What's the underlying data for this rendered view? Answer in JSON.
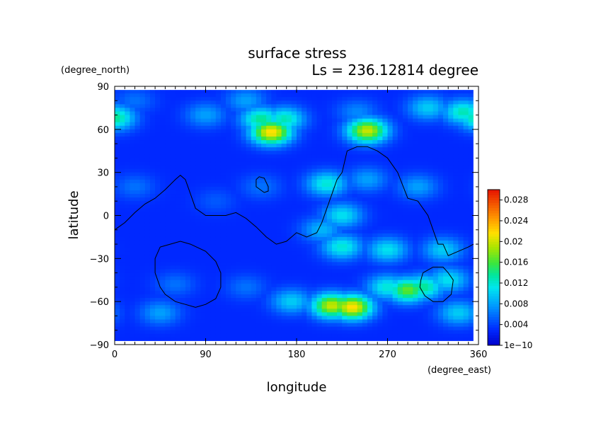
{
  "chart_data": {
    "type": "heatmap",
    "title": "surface stress",
    "subtitle": "Ls = 236.12814 degree",
    "xlabel": "longitude",
    "ylabel": "latitude",
    "x_unit": "(degree_east)",
    "y_unit": "(degree_north)",
    "xlim": [
      0,
      360
    ],
    "ylim": [
      -90,
      90
    ],
    "data_lat_range": [
      -87.5,
      87.5
    ],
    "x_ticks": [
      "0",
      "90",
      "180",
      "270",
      "360"
    ],
    "y_ticks": [
      "90",
      "60",
      "30",
      "0",
      "−30",
      "−60",
      "−90"
    ],
    "colorbar": {
      "min": 0,
      "max": 0.03,
      "tick_labels": [
        "1e−10",
        "0.004",
        "0.008",
        "0.012",
        "0.016",
        "0.02",
        "0.024",
        "0.028"
      ],
      "tick_values": [
        0,
        0.004,
        0.008,
        0.012,
        0.016,
        0.02,
        0.024,
        0.028
      ]
    },
    "background_value": 0.003,
    "features": [
      {
        "lon": 20,
        "lat": 80,
        "value": 0.006
      },
      {
        "lon": 130,
        "lat": 80,
        "value": 0.008
      },
      {
        "lon": 90,
        "lat": 70,
        "value": 0.008
      },
      {
        "lon": 0,
        "lat": 68,
        "value": 0.014
      },
      {
        "lon": 145,
        "lat": 67,
        "value": 0.014
      },
      {
        "lon": 168,
        "lat": 67,
        "value": 0.013
      },
      {
        "lon": 155,
        "lat": 58,
        "value": 0.022
      },
      {
        "lon": 250,
        "lat": 59,
        "value": 0.02
      },
      {
        "lon": 240,
        "lat": 72,
        "value": 0.007
      },
      {
        "lon": 310,
        "lat": 75,
        "value": 0.01
      },
      {
        "lon": 345,
        "lat": 72,
        "value": 0.013
      },
      {
        "lon": 210,
        "lat": 22,
        "value": 0.012
      },
      {
        "lon": 225,
        "lat": 0,
        "value": 0.011
      },
      {
        "lon": 205,
        "lat": -10,
        "value": 0.009
      },
      {
        "lon": 250,
        "lat": 25,
        "value": 0.008
      },
      {
        "lon": 300,
        "lat": 20,
        "value": 0.008
      },
      {
        "lon": 225,
        "lat": -22,
        "value": 0.012
      },
      {
        "lon": 270,
        "lat": -24,
        "value": 0.011
      },
      {
        "lon": 325,
        "lat": -24,
        "value": 0.01
      },
      {
        "lon": 60,
        "lat": -48,
        "value": 0.006
      },
      {
        "lon": 130,
        "lat": -50,
        "value": 0.006
      },
      {
        "lon": 175,
        "lat": -60,
        "value": 0.01
      },
      {
        "lon": 215,
        "lat": -63,
        "value": 0.02
      },
      {
        "lon": 235,
        "lat": -64,
        "value": 0.022
      },
      {
        "lon": 270,
        "lat": -50,
        "value": 0.012
      },
      {
        "lon": 290,
        "lat": -52,
        "value": 0.017
      },
      {
        "lon": 305,
        "lat": -50,
        "value": 0.014
      },
      {
        "lon": 330,
        "lat": -45,
        "value": 0.011
      },
      {
        "lon": 340,
        "lat": -68,
        "value": 0.01
      },
      {
        "lon": 45,
        "lat": -68,
        "value": 0.008
      },
      {
        "lon": 145,
        "lat": 20,
        "value": 0.006
      },
      {
        "lon": 20,
        "lat": 20,
        "value": 0.006
      },
      {
        "lon": 100,
        "lat": 10,
        "value": 0.005
      }
    ],
    "topography_contours": [
      {
        "lon": [
          0,
          10,
          20,
          30,
          40,
          50,
          60,
          65,
          70,
          75,
          80,
          90,
          100,
          110,
          120,
          130,
          140,
          150,
          160,
          170,
          180,
          190,
          200,
          205,
          210,
          215,
          220,
          225,
          230,
          240,
          250,
          260,
          270,
          280,
          290,
          300,
          305,
          310,
          315,
          320,
          325,
          330,
          340,
          350,
          355
        ],
        "lat": [
          -10,
          -5,
          2,
          8,
          12,
          18,
          25,
          28,
          25,
          15,
          5,
          0,
          0,
          0,
          2,
          -2,
          -8,
          -15,
          -20,
          -18,
          -12,
          -15,
          -12,
          -5,
          5,
          15,
          25,
          30,
          45,
          48,
          48,
          45,
          40,
          30,
          12,
          10,
          5,
          0,
          -10,
          -20,
          -20,
          -28,
          -25,
          -22,
          -20
        ]
      },
      {
        "lon": [
          140,
          143,
          148,
          152,
          152,
          148,
          144,
          140,
          140
        ],
        "lat": [
          25,
          27,
          26,
          20,
          17,
          16,
          18,
          20,
          25
        ]
      },
      {
        "lon": [
          45,
          55,
          65,
          75,
          90,
          100,
          105,
          105,
          100,
          90,
          80,
          70,
          60,
          50,
          45,
          40,
          40,
          45
        ],
        "lat": [
          -22,
          -20,
          -18,
          -20,
          -25,
          -32,
          -40,
          -50,
          -58,
          -62,
          -64,
          -62,
          -60,
          -55,
          -50,
          -40,
          -30,
          -22
        ]
      },
      {
        "lon": [
          305,
          315,
          325,
          330,
          335,
          333,
          325,
          315,
          307,
          302,
          303,
          305
        ],
        "lat": [
          -40,
          -36,
          -36,
          -40,
          -45,
          -55,
          -60,
          -60,
          -56,
          -50,
          -45,
          -40
        ]
      }
    ]
  }
}
